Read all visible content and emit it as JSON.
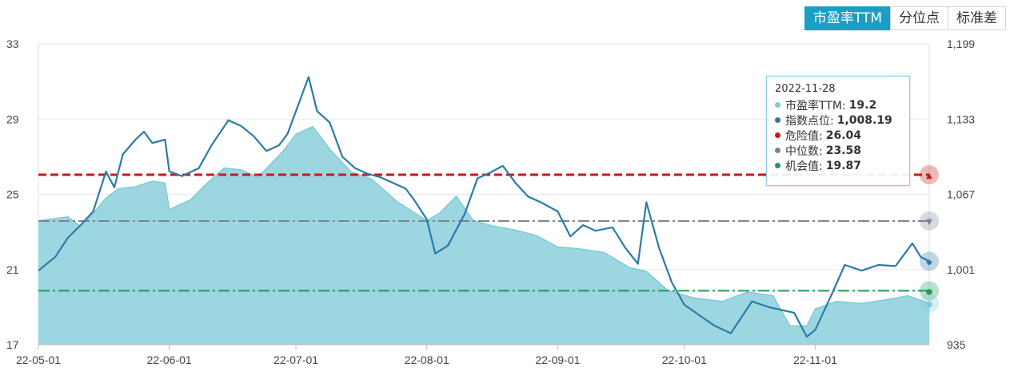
{
  "tabs": [
    {
      "label": "市盈率TTM",
      "active": true
    },
    {
      "label": "分位点",
      "active": false
    },
    {
      "label": "标准差",
      "active": false
    }
  ],
  "colors": {
    "pe_fill": "#97d4df",
    "pe_line": "#7fcad8",
    "index_line": "#2a7ca6",
    "danger": "#c41a1a",
    "median": "#7c8592",
    "opportunity": "#1f9a54"
  },
  "tooltip": {
    "date": "2022-11-28",
    "rows": [
      {
        "label": "市盈率TTM:",
        "value": "19.2",
        "color": "#7fcad8"
      },
      {
        "label": "指数点位:",
        "value": "1,008.19",
        "color": "#2a7ca6"
      },
      {
        "label": "危险值:",
        "value": "26.04",
        "color": "#c41a1a"
      },
      {
        "label": "中位数:",
        "value": "23.58",
        "color": "#7c8592"
      },
      {
        "label": "机会值:",
        "value": "19.87",
        "color": "#1f9a54"
      }
    ]
  },
  "chart_data": {
    "type": "area",
    "x_axis": {
      "labels": [
        "22-05-01",
        "22-06-01",
        "22-07-01",
        "22-08-01",
        "22-09-01",
        "22-10-01",
        "22-11-01"
      ],
      "range": [
        "2022-05-01",
        "2022-11-28"
      ]
    },
    "y_left": {
      "ticks": [
        "33",
        "29",
        "25",
        "21",
        "17"
      ],
      "ylim": [
        17,
        33
      ]
    },
    "y_right": {
      "ticks": [
        "1,199",
        "1,133",
        "1,067",
        "1,001",
        "935"
      ],
      "ylim": [
        935,
        1199
      ]
    },
    "reference_lines": [
      {
        "value": 26.04
      },
      {
        "value": 23.58
      },
      {
        "value": 19.87
      }
    ],
    "series": [
      {
        "axis": "left",
        "points": [
          [
            "2022-05-01",
            23.6
          ],
          [
            "2022-05-08",
            23.8
          ],
          [
            "2022-05-11",
            23.3
          ],
          [
            "2022-05-14",
            24.0
          ],
          [
            "2022-05-17",
            24.8
          ],
          [
            "2022-05-20",
            25.3
          ],
          [
            "2022-05-24",
            25.4
          ],
          [
            "2022-05-28",
            25.7
          ],
          [
            "2022-05-31",
            25.6
          ],
          [
            "2022-06-01",
            24.2
          ],
          [
            "2022-06-06",
            24.7
          ],
          [
            "2022-06-10",
            25.6
          ],
          [
            "2022-06-14",
            26.4
          ],
          [
            "2022-06-18",
            26.3
          ],
          [
            "2022-06-22",
            25.9
          ],
          [
            "2022-06-25",
            26.6
          ],
          [
            "2022-06-28",
            27.3
          ],
          [
            "2022-07-01",
            28.2
          ],
          [
            "2022-07-05",
            28.6
          ],
          [
            "2022-07-09",
            27.4
          ],
          [
            "2022-07-14",
            26.2
          ],
          [
            "2022-07-19",
            25.8
          ],
          [
            "2022-07-25",
            24.6
          ],
          [
            "2022-08-01",
            23.6
          ],
          [
            "2022-08-04",
            24.0
          ],
          [
            "2022-08-08",
            24.9
          ],
          [
            "2022-08-12",
            23.6
          ],
          [
            "2022-08-17",
            23.3
          ],
          [
            "2022-08-22",
            23.1
          ],
          [
            "2022-08-27",
            22.8
          ],
          [
            "2022-09-01",
            22.2
          ],
          [
            "2022-09-06",
            22.1
          ],
          [
            "2022-09-12",
            21.9
          ],
          [
            "2022-09-18",
            21.1
          ],
          [
            "2022-09-22",
            20.9
          ],
          [
            "2022-09-27",
            19.9
          ],
          [
            "2022-10-03",
            19.5
          ],
          [
            "2022-10-10",
            19.3
          ],
          [
            "2022-10-16",
            19.8
          ],
          [
            "2022-10-22",
            19.6
          ],
          [
            "2022-10-26",
            18.0
          ],
          [
            "2022-10-30",
            18.0
          ],
          [
            "2022-11-01",
            18.9
          ],
          [
            "2022-11-06",
            19.3
          ],
          [
            "2022-11-12",
            19.2
          ],
          [
            "2022-11-18",
            19.4
          ],
          [
            "2022-11-23",
            19.6
          ],
          [
            "2022-11-28",
            19.2
          ]
        ]
      },
      {
        "axis": "right",
        "points": [
          [
            "2022-05-01",
            1000
          ],
          [
            "2022-05-05",
            1012
          ],
          [
            "2022-05-08",
            1029
          ],
          [
            "2022-05-11",
            1040
          ],
          [
            "2022-05-14",
            1052
          ],
          [
            "2022-05-17",
            1087
          ],
          [
            "2022-05-19",
            1073
          ],
          [
            "2022-05-21",
            1102
          ],
          [
            "2022-05-24",
            1115
          ],
          [
            "2022-05-26",
            1122
          ],
          [
            "2022-05-28",
            1112
          ],
          [
            "2022-05-31",
            1115
          ],
          [
            "2022-06-01",
            1087
          ],
          [
            "2022-06-04",
            1083
          ],
          [
            "2022-06-08",
            1090
          ],
          [
            "2022-06-11",
            1110
          ],
          [
            "2022-06-15",
            1132
          ],
          [
            "2022-06-18",
            1127
          ],
          [
            "2022-06-21",
            1118
          ],
          [
            "2022-06-24",
            1105
          ],
          [
            "2022-06-27",
            1110
          ],
          [
            "2022-06-29",
            1120
          ],
          [
            "2022-07-01",
            1140
          ],
          [
            "2022-07-04",
            1170
          ],
          [
            "2022-07-06",
            1140
          ],
          [
            "2022-07-09",
            1130
          ],
          [
            "2022-07-12",
            1100
          ],
          [
            "2022-07-15",
            1090
          ],
          [
            "2022-07-18",
            1085
          ],
          [
            "2022-07-21",
            1082
          ],
          [
            "2022-07-24",
            1077
          ],
          [
            "2022-07-27",
            1072
          ],
          [
            "2022-07-29",
            1062
          ],
          [
            "2022-08-01",
            1045
          ],
          [
            "2022-08-03",
            1015
          ],
          [
            "2022-08-06",
            1022
          ],
          [
            "2022-08-10",
            1050
          ],
          [
            "2022-08-13",
            1081
          ],
          [
            "2022-08-16",
            1086
          ],
          [
            "2022-08-19",
            1092
          ],
          [
            "2022-08-22",
            1077
          ],
          [
            "2022-08-25",
            1065
          ],
          [
            "2022-08-28",
            1060
          ],
          [
            "2022-09-01",
            1052
          ],
          [
            "2022-09-04",
            1030
          ],
          [
            "2022-09-07",
            1040
          ],
          [
            "2022-09-10",
            1035
          ],
          [
            "2022-09-14",
            1038
          ],
          [
            "2022-09-17",
            1020
          ],
          [
            "2022-09-20",
            1006
          ],
          [
            "2022-09-22",
            1060
          ],
          [
            "2022-09-25",
            1020
          ],
          [
            "2022-09-28",
            990
          ],
          [
            "2022-10-01",
            970
          ],
          [
            "2022-10-08",
            952
          ],
          [
            "2022-10-12",
            945
          ],
          [
            "2022-10-17",
            973
          ],
          [
            "2022-10-21",
            968
          ],
          [
            "2022-10-27",
            963
          ],
          [
            "2022-10-30",
            942
          ],
          [
            "2022-11-01",
            948
          ],
          [
            "2022-11-05",
            980
          ],
          [
            "2022-11-08",
            1005
          ],
          [
            "2022-11-12",
            1000
          ],
          [
            "2022-11-16",
            1005
          ],
          [
            "2022-11-20",
            1004
          ],
          [
            "2022-11-24",
            1024
          ],
          [
            "2022-11-26",
            1012
          ],
          [
            "2022-11-28",
            1008.19
          ]
        ]
      }
    ],
    "grid": true
  }
}
